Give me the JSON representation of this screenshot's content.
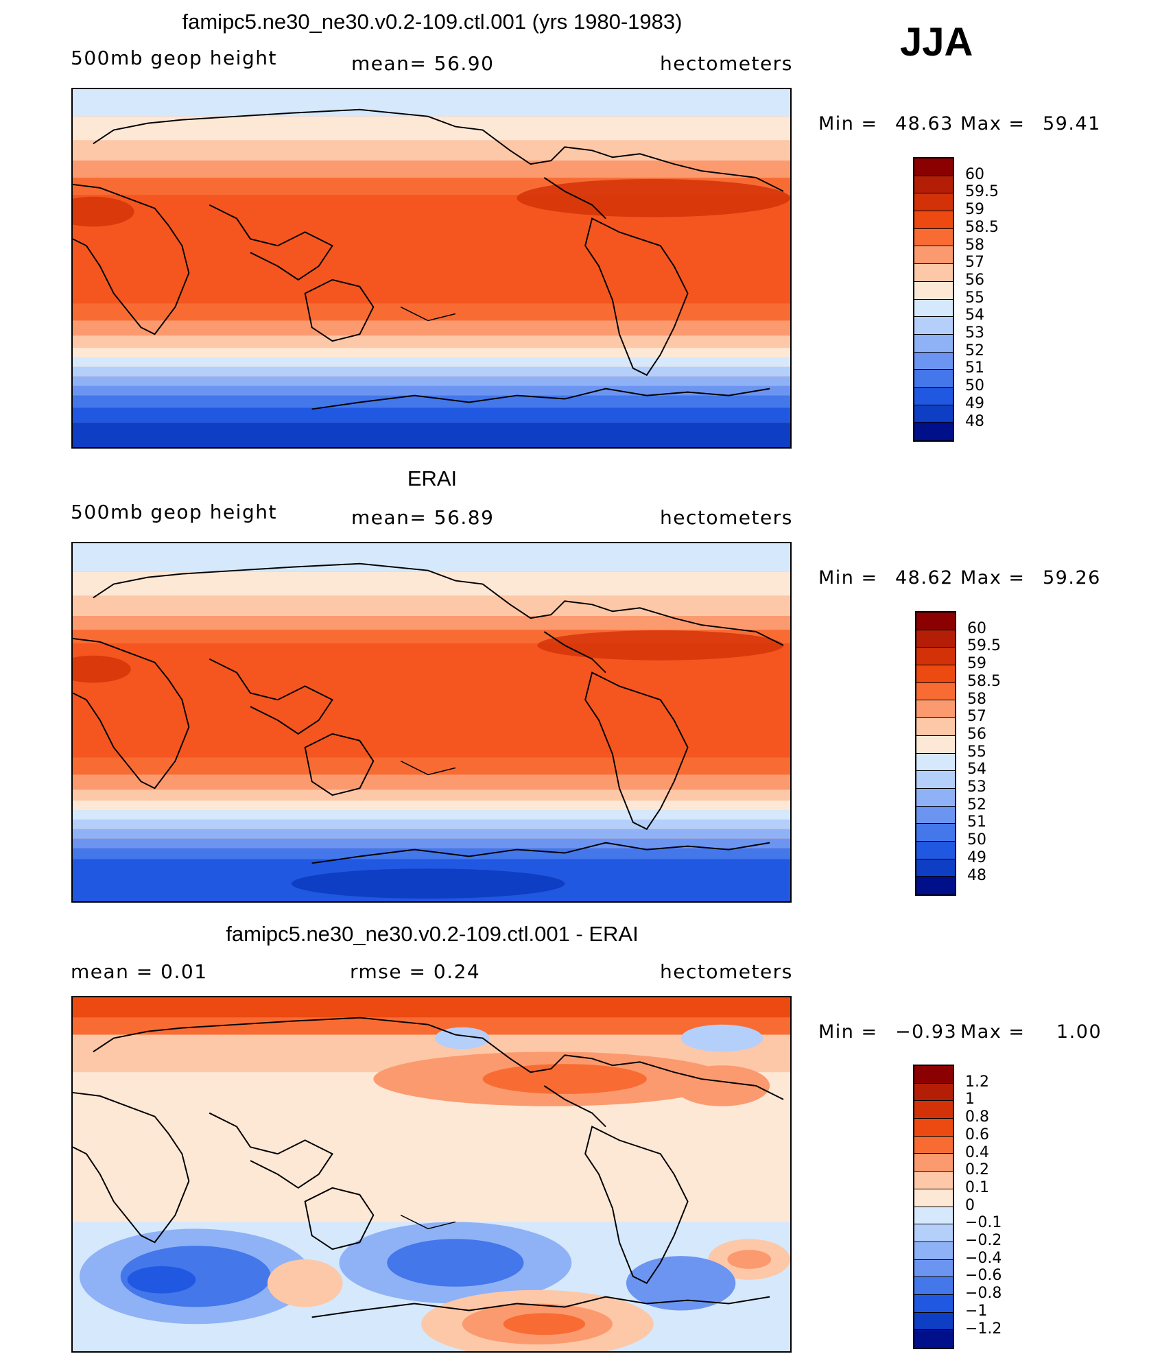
{
  "season": "JJA",
  "panels": [
    {
      "id": "model",
      "title": "famipc5.ne30_ne30.v0.2-109.ctl.001 (yrs 1980-1983)",
      "left_label": "500mb geop height",
      "center_label": "mean=   56.90",
      "right_label": "hectometers",
      "min_label": "Min =",
      "min_value": "48.63",
      "max_label": "Max =",
      "max_value": "59.41",
      "kind": "abs"
    },
    {
      "id": "obs",
      "title": "ERAI",
      "left_label": "500mb geop height",
      "center_label": "mean=   56.89",
      "right_label": "hectometers",
      "min_label": "Min =",
      "min_value": "48.62",
      "max_label": "Max =",
      "max_value": "59.26",
      "kind": "abs"
    },
    {
      "id": "diff",
      "title": "famipc5.ne30_ne30.v0.2-109.ctl.001 - ERAI",
      "left_label": "mean =    0.01",
      "center_label": "rmse =    0.24",
      "right_label": "hectometers",
      "min_label": "Min =",
      "min_value": "−0.93",
      "max_label": "Max =",
      "max_value": "1.00",
      "kind": "diff"
    }
  ],
  "colorbars": {
    "abs": {
      "labels": [
        "60",
        "59.5",
        "59",
        "58.5",
        "58",
        "57",
        "56",
        "55",
        "54",
        "53",
        "52",
        "51",
        "50",
        "49",
        "48"
      ],
      "colors": [
        "#8b0000",
        "#b41e06",
        "#d33208",
        "#ec4a10",
        "#f86c34",
        "#fb9a6f",
        "#fdc8a8",
        "#fde8d6",
        "#d6e8fb",
        "#b4cff9",
        "#8fb2f6",
        "#6c95f1",
        "#4377ea",
        "#2158e2",
        "#0d3ec3",
        "#00108a"
      ]
    },
    "diff": {
      "labels": [
        "1.2",
        "1",
        "0.8",
        "0.6",
        "0.4",
        "0.2",
        "0.1",
        "0",
        "−0.1",
        "−0.2",
        "−0.4",
        "−0.6",
        "−0.8",
        "−1",
        "−1.2"
      ],
      "colors": [
        "#8b0000",
        "#b41e06",
        "#d33208",
        "#ec4a10",
        "#f86c34",
        "#fb9a6f",
        "#fdc8a8",
        "#fde8d6",
        "#d6e8fb",
        "#b4cff9",
        "#8fb2f6",
        "#6c95f1",
        "#4377ea",
        "#2158e2",
        "#0d3ec3",
        "#00108a"
      ]
    }
  }
}
